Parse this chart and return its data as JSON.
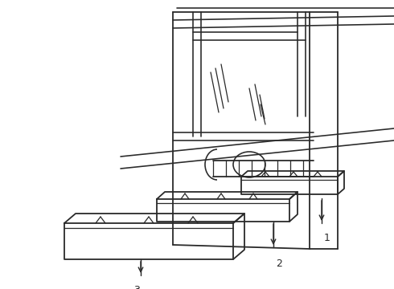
{
  "bg_color": "#ffffff",
  "line_color": "#2a2a2a",
  "line_width": 1.3,
  "figsize": [
    4.9,
    3.6
  ],
  "dpi": 100
}
